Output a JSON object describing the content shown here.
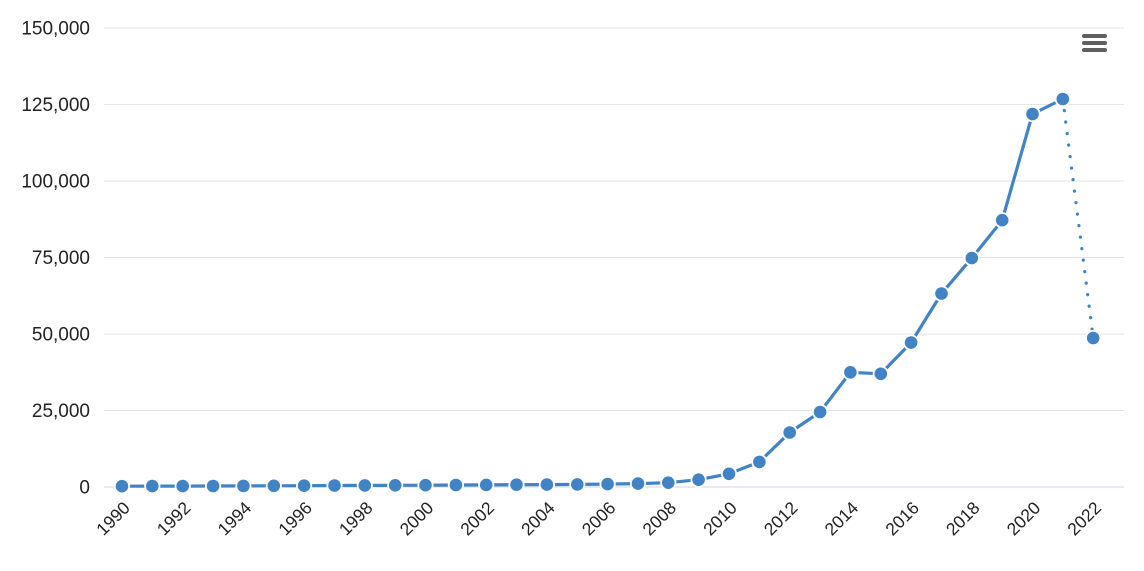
{
  "page": {
    "background": "#ffffff"
  },
  "toolbar": {
    "context_menu_tooltip": "Chart context menu",
    "menu_icon": "hamburger-menu-icon",
    "menu_icon_color": "#5f5f5f"
  },
  "chart_data": {
    "type": "line",
    "title": "",
    "xlabel": "",
    "ylabel": "",
    "x": [
      1990,
      1991,
      1992,
      1993,
      1994,
      1995,
      1996,
      1997,
      1998,
      1999,
      2000,
      2001,
      2002,
      2003,
      2004,
      2005,
      2006,
      2007,
      2008,
      2009,
      2010,
      2011,
      2012,
      2013,
      2014,
      2015,
      2016,
      2017,
      2018,
      2019,
      2020,
      2021,
      2022
    ],
    "values": [
      250,
      280,
      310,
      340,
      370,
      400,
      440,
      480,
      520,
      560,
      600,
      650,
      700,
      750,
      800,
      850,
      950,
      1100,
      1400,
      2400,
      4300,
      8200,
      17800,
      24500,
      37500,
      37000,
      47200,
      63200,
      74800,
      87200,
      121900,
      126800,
      48700
    ],
    "ylim": [
      0,
      150000
    ],
    "yticks": [
      0,
      25000,
      50000,
      75000,
      100000,
      125000,
      150000
    ],
    "ytick_labels": [
      "0",
      "25,000",
      "50,000",
      "75,000",
      "100,000",
      "125,000",
      "150,000"
    ],
    "xtick_labels": [
      "1990",
      "1992",
      "1994",
      "1996",
      "1998",
      "2000",
      "2002",
      "2004",
      "2006",
      "2008",
      "2010",
      "2012",
      "2014",
      "2016",
      "2018",
      "2020",
      "2022"
    ],
    "xtick_rotation": -45,
    "grid": "horizontal",
    "legend": "none",
    "marker": "circle",
    "last_segment_style": "dotted",
    "style": {
      "line_color": "#4183c4",
      "marker_fill": "#4183c4",
      "marker_border": "#ffffff",
      "grid_color": "#e6e6e6",
      "axis_line_color": "#ccd6eb",
      "label_color": "#222222"
    }
  }
}
